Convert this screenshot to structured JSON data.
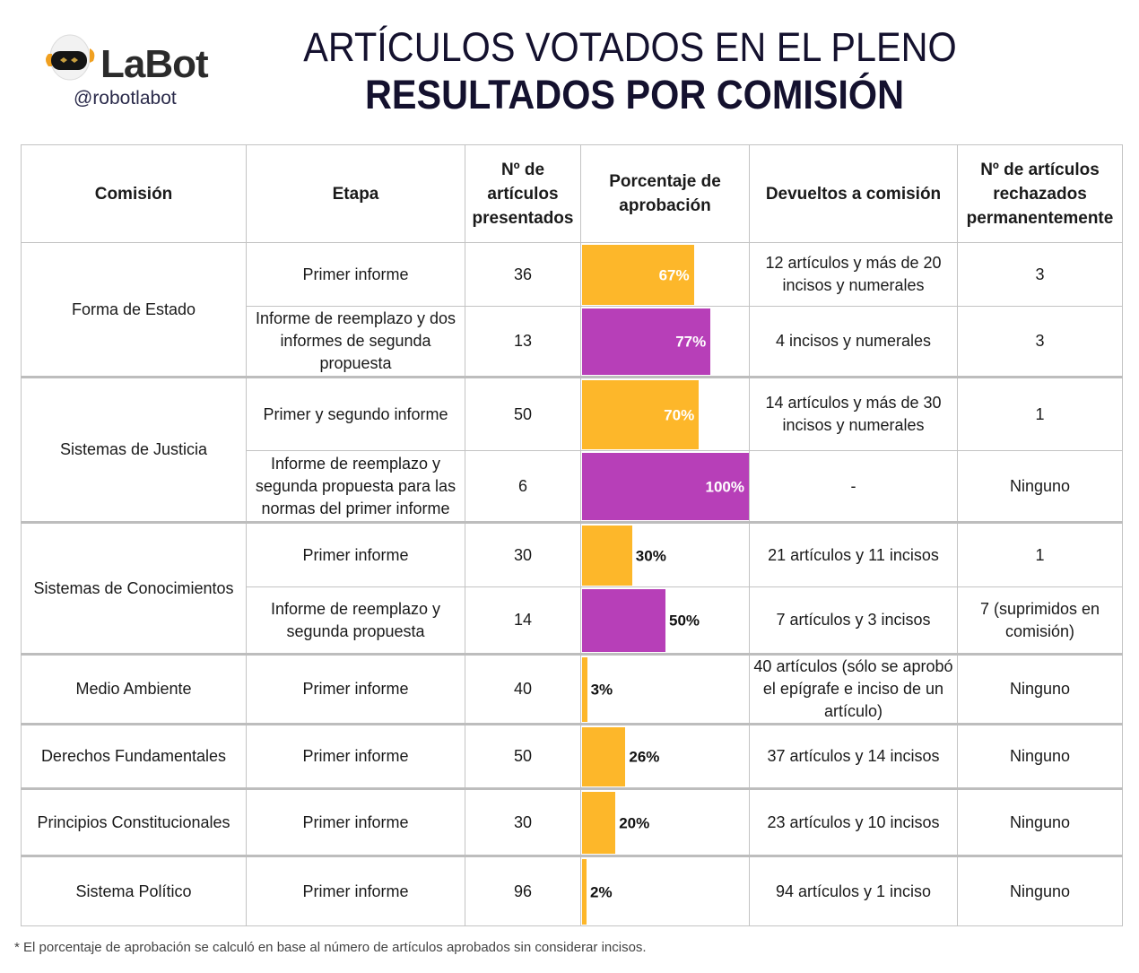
{
  "header": {
    "logo_name": "LaBot",
    "logo_handle": "@robotlabot",
    "title_line1": "ARTÍCULOS VOTADOS EN EL PLENO",
    "title_line2": "RESULTADOS POR COMISIÓN"
  },
  "colors": {
    "primer_informe_bar": "#FDB72A",
    "segunda_propuesta_bar": "#B73FB8",
    "title": "#14112E",
    "grid": "#C3C3C3"
  },
  "columns": [
    "Comisión",
    "Etapa",
    "Nº de artículos presentados",
    "Porcentaje de aprobación",
    "Devueltos a comisión",
    "Nº de artículos rechazados permanentemente"
  ],
  "chart_data": {
    "type": "table",
    "title": "ARTÍCULOS VOTADOS EN EL PLENO — RESULTADOS POR COMISIÓN",
    "value_column": "Porcentaje de aprobación",
    "value_range": [
      0,
      100
    ],
    "series_colors": {
      "first_report": "#FDB72A",
      "replacement_report": "#B73FB8"
    },
    "rows": [
      {
        "comision": "Forma de Estado",
        "etapa": "Primer informe",
        "presentados": "36",
        "aprobacion": 67,
        "aprobacion_label": "67%",
        "tipo": "first_report",
        "devueltos": "12 artículos y más de 20 incisos y numerales",
        "rechazados": "3"
      },
      {
        "comision": "Forma de Estado",
        "etapa": "Informe de reemplazo y dos informes de segunda propuesta",
        "presentados": "13",
        "aprobacion": 77,
        "aprobacion_label": "77%",
        "tipo": "replacement_report",
        "devueltos": "4 incisos y numerales",
        "rechazados": "3"
      },
      {
        "comision": "Sistemas de Justicia",
        "etapa": "Primer y segundo informe",
        "presentados": "50",
        "aprobacion": 70,
        "aprobacion_label": "70%",
        "tipo": "first_report",
        "devueltos": "14 artículos y más de 30 incisos y numerales",
        "rechazados": "1"
      },
      {
        "comision": "Sistemas de Justicia",
        "etapa": "Informe de reemplazo y segunda propuesta para las normas del primer informe",
        "presentados": "6",
        "aprobacion": 100,
        "aprobacion_label": "100%",
        "tipo": "replacement_report",
        "devueltos": "-",
        "rechazados": "Ninguno"
      },
      {
        "comision": "Sistemas de Conocimientos",
        "etapa": "Primer informe",
        "presentados": "30",
        "aprobacion": 30,
        "aprobacion_label": "30%",
        "tipo": "first_report",
        "devueltos": "21 artículos y 11 incisos",
        "rechazados": "1"
      },
      {
        "comision": "Sistemas de Conocimientos",
        "etapa": "Informe de reemplazo y segunda propuesta",
        "presentados": "14",
        "aprobacion": 50,
        "aprobacion_label": "50%",
        "tipo": "replacement_report",
        "devueltos": "7 artículos y 3 incisos",
        "rechazados": "7 (suprimidos en comisión)"
      },
      {
        "comision": "Medio Ambiente",
        "etapa": "Primer informe",
        "presentados": "40",
        "aprobacion": 3,
        "aprobacion_label": "3%",
        "tipo": "first_report",
        "devueltos": "40 artículos (sólo se aprobó el epígrafe e inciso de un artículo)",
        "rechazados": "Ninguno"
      },
      {
        "comision": "Derechos Fundamentales",
        "etapa": "Primer informe",
        "presentados": "50",
        "aprobacion": 26,
        "aprobacion_label": "26%",
        "tipo": "first_report",
        "devueltos": "37 artículos y 14 incisos",
        "rechazados": "Ninguno"
      },
      {
        "comision": "Principios Constitucionales",
        "etapa": "Primer informe",
        "presentados": "30",
        "aprobacion": 20,
        "aprobacion_label": "20%",
        "tipo": "first_report",
        "devueltos": "23 artículos y 10 incisos",
        "rechazados": "Ninguno"
      },
      {
        "comision": "Sistema Político",
        "etapa": "Primer informe",
        "presentados": "96",
        "aprobacion": 2,
        "aprobacion_label": "2%",
        "tipo": "first_report",
        "devueltos": "94 artículos y 1 inciso",
        "rechazados": "Ninguno"
      }
    ]
  },
  "footnote": "* El porcentaje de aprobación se calculó en base al número de artículos aprobados sin considerar incisos."
}
